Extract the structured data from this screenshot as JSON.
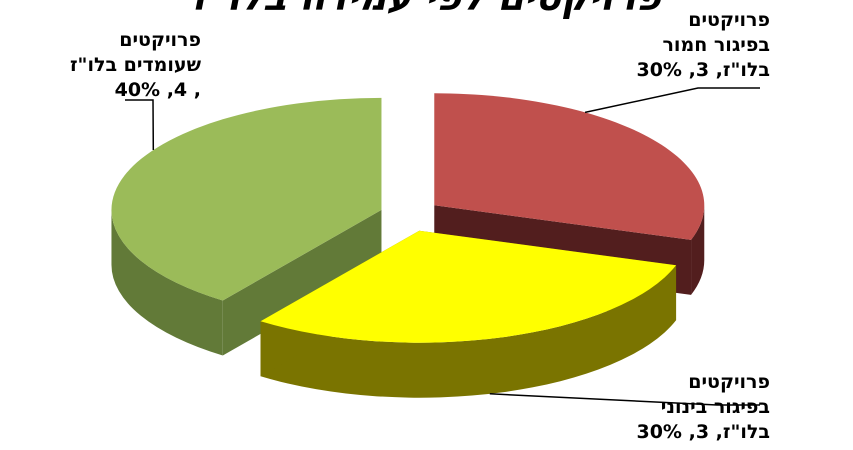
{
  "chart_data": {
    "type": "pie",
    "title": "פרויקטים לפי עמידה בלו\"ז",
    "slices": [
      {
        "label_lines": [
          "פרויקטים",
          "בפיגור חמור",
          "בלו\"ז, 3, 30%"
        ],
        "value": 3,
        "percent": 30,
        "color": "#c0504d",
        "side_color": "#521e1e"
      },
      {
        "label_lines": [
          "פרויקטים",
          "בפיגור בינוני",
          "בלו\"ז, 3, 30%"
        ],
        "value": 3,
        "percent": 30,
        "color": "#ffff00",
        "side_color": "#7a7400"
      },
      {
        "label_lines": [
          "פרויקטים",
          "שעומדים בלו\"ז",
          ", 4, 40%"
        ],
        "value": 4,
        "percent": 40,
        "color": "#9bbb59",
        "side_color": "#627a38"
      }
    ]
  }
}
